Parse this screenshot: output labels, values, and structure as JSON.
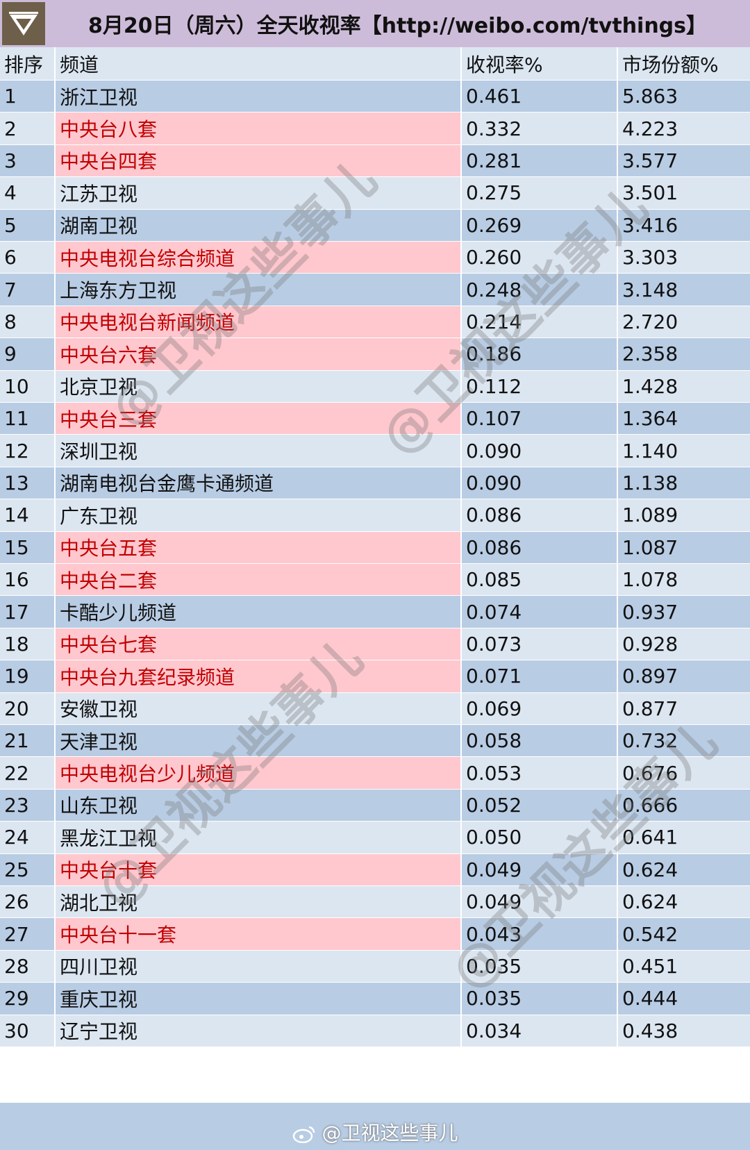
{
  "title": "8月20日（周六）全天收视率【http://weibo.com/tvthings】",
  "columns": [
    "排序",
    "频道",
    "收视率%",
    "市场份额%"
  ],
  "rows": [
    {
      "rank": "1",
      "channel": "浙江卫视",
      "rating": "0.461",
      "share": "5.863",
      "cctv": false
    },
    {
      "rank": "2",
      "channel": "中央台八套",
      "rating": "0.332",
      "share": "4.223",
      "cctv": true
    },
    {
      "rank": "3",
      "channel": "中央台四套",
      "rating": "0.281",
      "share": "3.577",
      "cctv": true
    },
    {
      "rank": "4",
      "channel": "江苏卫视",
      "rating": "0.275",
      "share": "3.501",
      "cctv": false
    },
    {
      "rank": "5",
      "channel": "湖南卫视",
      "rating": "0.269",
      "share": "3.416",
      "cctv": false
    },
    {
      "rank": "6",
      "channel": "中央电视台综合频道",
      "rating": "0.260",
      "share": "3.303",
      "cctv": true
    },
    {
      "rank": "7",
      "channel": "上海东方卫视",
      "rating": "0.248",
      "share": "3.148",
      "cctv": false
    },
    {
      "rank": "8",
      "channel": "中央电视台新闻频道",
      "rating": "0.214",
      "share": "2.720",
      "cctv": true
    },
    {
      "rank": "9",
      "channel": "中央台六套",
      "rating": "0.186",
      "share": "2.358",
      "cctv": true
    },
    {
      "rank": "10",
      "channel": "北京卫视",
      "rating": "0.112",
      "share": "1.428",
      "cctv": false
    },
    {
      "rank": "11",
      "channel": "中央台三套",
      "rating": "0.107",
      "share": "1.364",
      "cctv": true
    },
    {
      "rank": "12",
      "channel": "深圳卫视",
      "rating": "0.090",
      "share": "1.140",
      "cctv": false
    },
    {
      "rank": "13",
      "channel": "湖南电视台金鹰卡通频道",
      "rating": "0.090",
      "share": "1.138",
      "cctv": false
    },
    {
      "rank": "14",
      "channel": "广东卫视",
      "rating": "0.086",
      "share": "1.089",
      "cctv": false
    },
    {
      "rank": "15",
      "channel": "中央台五套",
      "rating": "0.086",
      "share": "1.087",
      "cctv": true
    },
    {
      "rank": "16",
      "channel": "中央台二套",
      "rating": "0.085",
      "share": "1.078",
      "cctv": true
    },
    {
      "rank": "17",
      "channel": "卡酷少儿频道",
      "rating": "0.074",
      "share": "0.937",
      "cctv": false
    },
    {
      "rank": "18",
      "channel": "中央台七套",
      "rating": "0.073",
      "share": "0.928",
      "cctv": true
    },
    {
      "rank": "19",
      "channel": "中央台九套纪录频道",
      "rating": "0.071",
      "share": "0.897",
      "cctv": true
    },
    {
      "rank": "20",
      "channel": "安徽卫视",
      "rating": "0.069",
      "share": "0.877",
      "cctv": false
    },
    {
      "rank": "21",
      "channel": "天津卫视",
      "rating": "0.058",
      "share": "0.732",
      "cctv": false
    },
    {
      "rank": "22",
      "channel": "中央电视台少儿频道",
      "rating": "0.053",
      "share": "0.676",
      "cctv": true
    },
    {
      "rank": "23",
      "channel": "山东卫视",
      "rating": "0.052",
      "share": "0.666",
      "cctv": false
    },
    {
      "rank": "24",
      "channel": "黑龙江卫视",
      "rating": "0.050",
      "share": "0.641",
      "cctv": false
    },
    {
      "rank": "25",
      "channel": "中央台十套",
      "rating": "0.049",
      "share": "0.624",
      "cctv": true
    },
    {
      "rank": "26",
      "channel": "湖北卫视",
      "rating": "0.049",
      "share": "0.624",
      "cctv": false
    },
    {
      "rank": "27",
      "channel": "中央台十一套",
      "rating": "0.043",
      "share": "0.542",
      "cctv": true
    },
    {
      "rank": "28",
      "channel": "四川卫视",
      "rating": "0.035",
      "share": "0.451",
      "cctv": false
    },
    {
      "rank": "29",
      "channel": "重庆卫视",
      "rating": "0.035",
      "share": "0.444",
      "cctv": false
    },
    {
      "rank": "30",
      "channel": "辽宁卫视",
      "rating": "0.034",
      "share": "0.438",
      "cctv": false
    }
  ],
  "watermark": "@卫视这些事儿",
  "footer_credit": "@卫视这些事儿",
  "colors": {
    "header_band": "#cdbcd9",
    "row_dark": "#b8cce4",
    "row_light": "#dce6f1",
    "cctv_fill": "#ffc7ce",
    "cctv_text": "#c00000"
  },
  "icons": {
    "logo": "v-shield-logo",
    "footer": "weibo-icon"
  }
}
